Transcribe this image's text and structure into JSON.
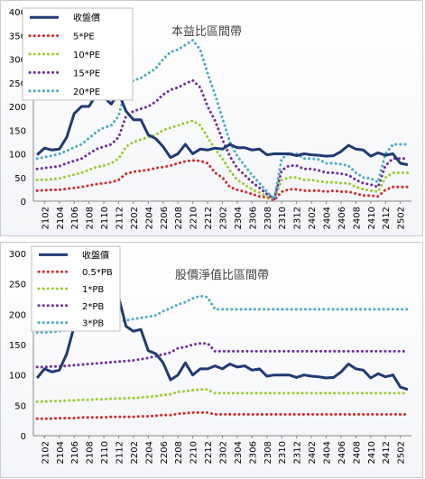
{
  "chart_data": [
    {
      "type": "line",
      "title": "本益比區間帶",
      "ylim": [
        0,
        400
      ],
      "yticks": [
        0,
        50,
        100,
        150,
        200,
        250,
        300,
        350,
        400
      ],
      "grid": false,
      "legend_position": "top-left",
      "x": [
        "2101",
        "2102",
        "2103",
        "2104",
        "2105",
        "2106",
        "2107",
        "2108",
        "2109",
        "2110",
        "2111",
        "2112",
        "2201",
        "2202",
        "2203",
        "2204",
        "2205",
        "2206",
        "2207",
        "2208",
        "2209",
        "2210",
        "2211",
        "2212",
        "2301",
        "2302",
        "2303",
        "2304",
        "2305",
        "2306",
        "2307",
        "2308",
        "2309",
        "2310",
        "2311",
        "2312",
        "2401",
        "2402",
        "2403",
        "2404",
        "2405",
        "2406",
        "2407",
        "2408",
        "2409",
        "2410",
        "2411",
        "2412",
        "2501",
        "2502",
        "2503"
      ],
      "x_tick_labels": [
        "2102",
        "2104",
        "2106",
        "2108",
        "2110",
        "2112",
        "2202",
        "2204",
        "2206",
        "2208",
        "2210",
        "2212",
        "2302",
        "2304",
        "2306",
        "2308",
        "2310",
        "2312",
        "2402",
        "2404",
        "2406",
        "2408",
        "2410",
        "2412",
        "2502"
      ],
      "series": [
        {
          "name": "收盤價",
          "color": "#1f3b73",
          "style": "solid",
          "values": [
            98,
            112,
            108,
            110,
            135,
            185,
            200,
            200,
            225,
            220,
            205,
            228,
            190,
            172,
            172,
            140,
            132,
            115,
            92,
            100,
            120,
            100,
            110,
            108,
            112,
            110,
            120,
            113,
            113,
            108,
            110,
            98,
            100,
            100,
            100,
            96,
            100,
            98,
            97,
            95,
            96,
            105,
            118,
            110,
            108,
            95,
            102,
            97,
            100,
            80,
            77
          ]
        },
        {
          "name": "5*PE",
          "color": "#d42a2a",
          "style": "dotted",
          "values": [
            22,
            23,
            24,
            24,
            26,
            28,
            30,
            33,
            36,
            38,
            40,
            45,
            58,
            62,
            64,
            66,
            70,
            72,
            75,
            80,
            84,
            86,
            85,
            80,
            60,
            50,
            30,
            24,
            20,
            15,
            10,
            8,
            2,
            20,
            25,
            25,
            22,
            22,
            22,
            20,
            22,
            20,
            20,
            16,
            12,
            12,
            10,
            24,
            30,
            30,
            30
          ]
        },
        {
          "name": "10*PE",
          "color": "#9acd32",
          "style": "dotted",
          "values": [
            45,
            45,
            46,
            48,
            52,
            56,
            60,
            66,
            72,
            75,
            80,
            90,
            115,
            125,
            130,
            135,
            140,
            150,
            155,
            160,
            165,
            170,
            160,
            135,
            110,
            90,
            65,
            45,
            35,
            25,
            18,
            10,
            5,
            45,
            50,
            50,
            45,
            45,
            42,
            40,
            40,
            38,
            38,
            30,
            25,
            22,
            20,
            50,
            60,
            60,
            60
          ]
        },
        {
          "name": "15*PE",
          "color": "#7030a0",
          "style": "dotted",
          "values": [
            68,
            70,
            72,
            74,
            80,
            85,
            90,
            100,
            110,
            115,
            120,
            135,
            180,
            190,
            195,
            200,
            210,
            225,
            235,
            240,
            248,
            255,
            240,
            200,
            170,
            130,
            95,
            70,
            55,
            40,
            28,
            15,
            5,
            65,
            75,
            75,
            68,
            68,
            65,
            60,
            60,
            58,
            55,
            45,
            38,
            35,
            30,
            75,
            90,
            90,
            90
          ]
        },
        {
          "name": "20*PE",
          "color": "#4bacc6",
          "style": "dotted",
          "values": [
            90,
            93,
            96,
            100,
            106,
            114,
            120,
            133,
            146,
            155,
            160,
            180,
            240,
            255,
            260,
            270,
            280,
            300,
            315,
            320,
            330,
            340,
            320,
            270,
            225,
            175,
            125,
            95,
            75,
            55,
            38,
            20,
            5,
            90,
            100,
            100,
            90,
            90,
            88,
            80,
            80,
            78,
            75,
            60,
            50,
            48,
            40,
            100,
            120,
            120,
            120
          ]
        }
      ]
    },
    {
      "type": "line",
      "title": "股價淨值比區間帶",
      "ylim": [
        0,
        300
      ],
      "yticks": [
        0,
        50,
        100,
        150,
        200,
        250,
        300
      ],
      "grid": false,
      "legend_position": "top-left",
      "x": [
        "2101",
        "2102",
        "2103",
        "2104",
        "2105",
        "2106",
        "2107",
        "2108",
        "2109",
        "2110",
        "2111",
        "2112",
        "2201",
        "2202",
        "2203",
        "2204",
        "2205",
        "2206",
        "2207",
        "2208",
        "2209",
        "2210",
        "2211",
        "2212",
        "2301",
        "2302",
        "2303",
        "2304",
        "2305",
        "2306",
        "2307",
        "2308",
        "2309",
        "2310",
        "2311",
        "2312",
        "2401",
        "2402",
        "2403",
        "2404",
        "2405",
        "2406",
        "2407",
        "2408",
        "2409",
        "2410",
        "2411",
        "2412",
        "2501",
        "2502",
        "2503"
      ],
      "x_tick_labels": [
        "2102",
        "2104",
        "2106",
        "2108",
        "2110",
        "2112",
        "2202",
        "2204",
        "2206",
        "2208",
        "2210",
        "2212",
        "2302",
        "2304",
        "2306",
        "2308",
        "2310",
        "2312",
        "2402",
        "2404",
        "2406",
        "2408",
        "2410",
        "2412",
        "2502"
      ],
      "series": [
        {
          "name": "收盤價",
          "color": "#1f3b73",
          "style": "solid",
          "values": [
            95,
            110,
            105,
            108,
            135,
            180,
            200,
            205,
            225,
            225,
            210,
            228,
            180,
            172,
            175,
            140,
            135,
            120,
            92,
            100,
            120,
            100,
            110,
            110,
            115,
            110,
            118,
            113,
            115,
            108,
            110,
            98,
            100,
            100,
            100,
            96,
            100,
            98,
            97,
            95,
            96,
            105,
            118,
            110,
            108,
            95,
            102,
            97,
            100,
            80,
            76
          ]
        },
        {
          "name": "0.5*PB",
          "color": "#d42a2a",
          "style": "dotted",
          "values": [
            28,
            28,
            28,
            29,
            29,
            29,
            30,
            30,
            30,
            30,
            31,
            31,
            31,
            31,
            32,
            32,
            33,
            34,
            34,
            36,
            37,
            38,
            38,
            38,
            35,
            35,
            35,
            35,
            35,
            35,
            35,
            35,
            35,
            35,
            35,
            35,
            35,
            35,
            35,
            35,
            35,
            35,
            35,
            35,
            35,
            35,
            35,
            35,
            35,
            35,
            35
          ]
        },
        {
          "name": "1*PB",
          "color": "#9acd32",
          "style": "dotted",
          "values": [
            56,
            56,
            57,
            57,
            58,
            58,
            59,
            59,
            60,
            60,
            61,
            61,
            62,
            62,
            63,
            64,
            65,
            67,
            68,
            72,
            73,
            75,
            76,
            76,
            70,
            70,
            70,
            70,
            70,
            70,
            70,
            70,
            70,
            70,
            70,
            70,
            70,
            70,
            70,
            70,
            70,
            70,
            70,
            70,
            70,
            70,
            70,
            70,
            70,
            70,
            70
          ]
        },
        {
          "name": "2*PB",
          "color": "#7030a0",
          "style": "dotted",
          "values": [
            113,
            113,
            114,
            114,
            115,
            116,
            117,
            118,
            119,
            120,
            121,
            122,
            123,
            124,
            126,
            128,
            131,
            134,
            137,
            144,
            146,
            150,
            152,
            152,
            139,
            139,
            139,
            139,
            139,
            139,
            139,
            139,
            139,
            139,
            139,
            139,
            139,
            139,
            139,
            139,
            139,
            139,
            139,
            139,
            139,
            139,
            139,
            139,
            139,
            139,
            139
          ]
        },
        {
          "name": "3*PB",
          "color": "#4bacc6",
          "style": "dotted",
          "values": [
            170,
            170,
            171,
            172,
            174,
            176,
            178,
            180,
            182,
            184,
            186,
            188,
            190,
            192,
            194,
            196,
            198,
            205,
            210,
            216,
            220,
            226,
            230,
            228,
            208,
            208,
            208,
            208,
            208,
            208,
            208,
            208,
            208,
            208,
            208,
            208,
            208,
            208,
            208,
            208,
            208,
            208,
            208,
            208,
            208,
            208,
            208,
            208,
            208,
            208,
            208
          ]
        }
      ]
    }
  ]
}
